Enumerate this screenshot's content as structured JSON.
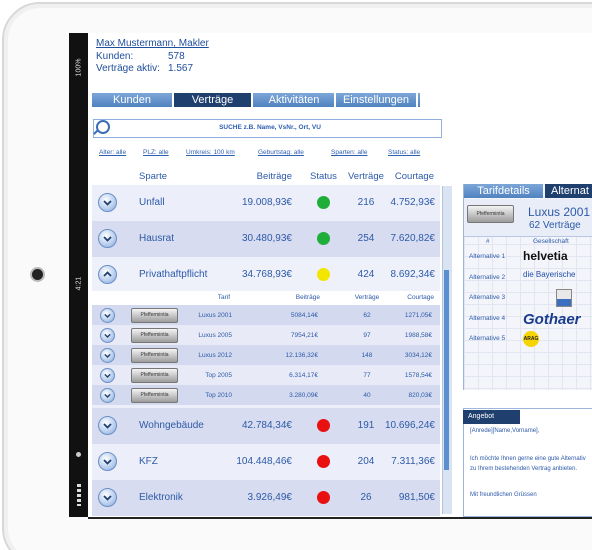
{
  "status_bar": {
    "battery": "100%",
    "time": "4:21"
  },
  "header": {
    "user": "Max Mustermann, Makler",
    "customers_label": "Kunden:",
    "customers": "578",
    "contracts_label": "Verträge aktiv:",
    "contracts": "1.567"
  },
  "tabs": [
    "Kunden",
    "Verträge",
    "Aktivitäten",
    "Einstellungen"
  ],
  "active_tab": 1,
  "search_placeholder": "SUCHE z.B. Name, VsNr., Ort, VU",
  "filters": [
    "Alter: alle",
    "PLZ: alle",
    "Umkreis: 100 km",
    "Geburtstag: alle",
    "Sparten: alle",
    "Status: alle"
  ],
  "table": {
    "columns": [
      "Sparte",
      "Beiträge",
      "Status",
      "Verträge",
      "Courtage"
    ],
    "rows": [
      {
        "sparte": "Unfall",
        "beitraege": "19.008,93€",
        "status": "#1fae3a",
        "vertraege": "216",
        "courtage": "4.752,93€"
      },
      {
        "sparte": "Hausrat",
        "beitraege": "30.480,93€",
        "status": "#1fae3a",
        "vertraege": "254",
        "courtage": "7.620,82€"
      },
      {
        "sparte": "Privathaftpflicht",
        "beitraege": "34.768,93€",
        "status": "#f2e600",
        "vertraege": "424",
        "courtage": "8.692,34€",
        "details": {
          "columns": [
            "Tarif",
            "Beiträge",
            "Verträge",
            "Courtage"
          ],
          "rows": [
            {
              "logo": "Pfeffermintia",
              "tarif": "Luxus 2001",
              "beitraege": "5084,14€",
              "vertraege": "62",
              "courtage": "1271,05€"
            },
            {
              "logo": "Pfeffermintia",
              "tarif": "Luxus 2005",
              "beitraege": "7954,21€",
              "vertraege": "97",
              "courtage": "1988,58€"
            },
            {
              "logo": "Pfeffermintia",
              "tarif": "Luxus 2012",
              "beitraege": "12.136,32€",
              "vertraege": "148",
              "courtage": "3034,12€"
            },
            {
              "logo": "Pfeffermintia",
              "tarif": "Top 2005",
              "beitraege": "6.314,17€",
              "vertraege": "77",
              "courtage": "1578,54€"
            },
            {
              "logo": "Pfeffermintia",
              "tarif": "Top 2010",
              "beitraege": "3.280,09€",
              "vertraege": "40",
              "courtage": "820,03€"
            }
          ]
        }
      },
      {
        "sparte": "Wohngebäude",
        "beitraege": "42.784,34€",
        "status": "#e81010",
        "vertraege": "191",
        "courtage": "10.696,24€"
      },
      {
        "sparte": "KFZ",
        "beitraege": "104.448,46€",
        "status": "#e81010",
        "vertraege": "204",
        "courtage": "7.311,36€"
      },
      {
        "sparte": "Elektronik",
        "beitraege": "3.926,49€",
        "status": "#e81010",
        "vertraege": "26",
        "courtage": "981,50€"
      }
    ]
  },
  "side_panel": {
    "tabs": [
      "Tarifdetails",
      "Alternat"
    ],
    "card": {
      "logo": "Pfeffermintia",
      "title": "Luxus 2001",
      "subtitle": "62 Verträge"
    },
    "columns": [
      "#",
      "Gesellschaft"
    ],
    "alternatives": [
      {
        "label": "Alternative 1",
        "logo": "helvetia"
      },
      {
        "label": "Alternative 2",
        "logo": "die Bayerische"
      },
      {
        "label": "Alternative 3"
      },
      {
        "label": "Alternative 4",
        "logo": "Gothaer"
      },
      {
        "label": "Alternative 5",
        "logo": "ARAG"
      }
    ],
    "offer": {
      "title": "Angebot",
      "lines": [
        "[Anrede][Name,Vorname],",
        "Ich möchte Ihnen gerne eine gute Alternativ",
        "zu Ihrem bestehenden Vertrag anbieten.",
        "Mit freundlichen Grüssen"
      ]
    }
  }
}
